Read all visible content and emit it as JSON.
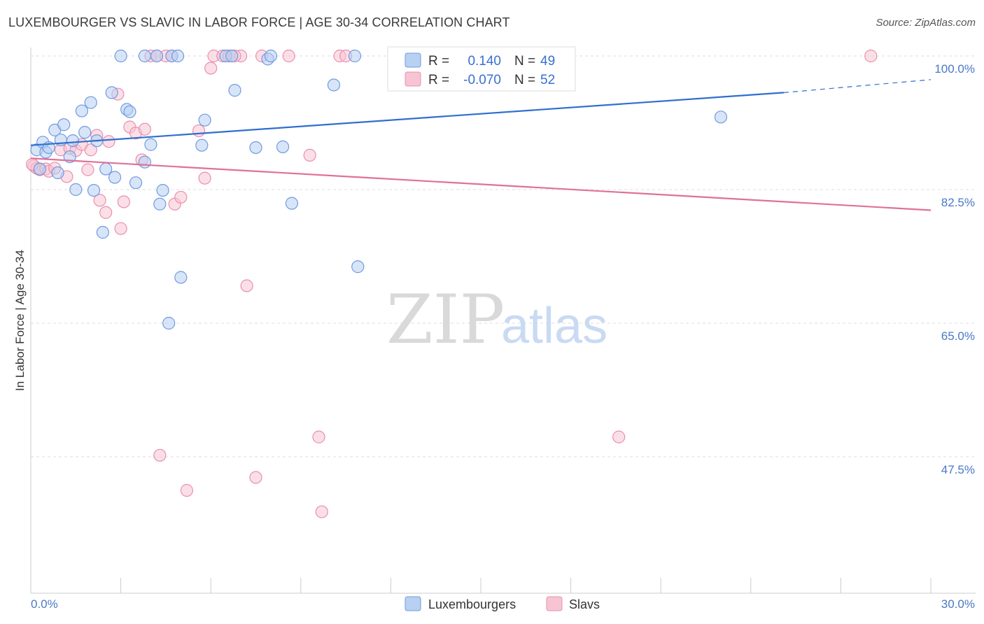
{
  "title": "LUXEMBOURGER VS SLAVIC IN LABOR FORCE | AGE 30-34 CORRELATION CHART",
  "source": "Source: ZipAtlas.com",
  "watermark": {
    "zip": "ZIP",
    "atlas": "atlas"
  },
  "legend": {
    "r_label": "R =",
    "n_label": "N =",
    "series": [
      {
        "r": "0.140",
        "n": "49"
      },
      {
        "r": "-0.070",
        "n": "52"
      }
    ]
  },
  "colors": {
    "lux_fill": "#b8d0f2",
    "lux_stroke": "#6f9be0",
    "lux_line": "#2f6fcf",
    "slav_fill": "#f7c4d3",
    "slav_stroke": "#e890ad",
    "slav_line": "#e0709a",
    "grid": "#dddddd",
    "axis_text": "#4a78c8"
  },
  "chart_data": {
    "type": "scatter",
    "title": "LUXEMBOURGER VS SLAVIC IN LABOR FORCE | AGE 30-34 CORRELATION CHART",
    "xlabel": "",
    "ylabel": "In Labor Force | Age 30-34",
    "xlim": [
      0,
      30
    ],
    "ylim": [
      32.5,
      102
    ],
    "x_tick_labels": [
      "0.0%",
      "30.0%"
    ],
    "y_ticks": [
      47.5,
      65.0,
      82.5,
      100.0
    ],
    "y_tick_labels": [
      "47.5%",
      "65.0%",
      "82.5%",
      "100.0%"
    ],
    "grid": true,
    "legend_position": "top-center",
    "series": [
      {
        "name": "Luxembourgers",
        "r": 0.14,
        "n": 49,
        "trend": {
          "x": [
            0,
            25.1
          ],
          "y": [
            88.3,
            95.2
          ],
          "dashed_to": [
            30,
            96.9
          ]
        },
        "points": [
          [
            0.2,
            87.7
          ],
          [
            0.3,
            85.2
          ],
          [
            0.4,
            88.7
          ],
          [
            0.5,
            87.4
          ],
          [
            0.6,
            88.0
          ],
          [
            0.8,
            90.3
          ],
          [
            0.9,
            84.7
          ],
          [
            1.0,
            89.0
          ],
          [
            1.1,
            91.0
          ],
          [
            1.3,
            86.8
          ],
          [
            1.4,
            88.9
          ],
          [
            1.5,
            82.5
          ],
          [
            1.7,
            92.8
          ],
          [
            1.8,
            90.0
          ],
          [
            2.0,
            93.9
          ],
          [
            2.1,
            82.4
          ],
          [
            2.2,
            88.9
          ],
          [
            2.4,
            76.9
          ],
          [
            2.5,
            85.2
          ],
          [
            2.7,
            95.2
          ],
          [
            2.8,
            84.1
          ],
          [
            3.0,
            100.0
          ],
          [
            3.2,
            93.0
          ],
          [
            3.3,
            92.7
          ],
          [
            3.5,
            83.4
          ],
          [
            3.8,
            86.1
          ],
          [
            3.8,
            100.0
          ],
          [
            4.0,
            88.4
          ],
          [
            4.2,
            100.0
          ],
          [
            4.3,
            80.6
          ],
          [
            4.4,
            82.4
          ],
          [
            4.6,
            65.0
          ],
          [
            4.7,
            100.0
          ],
          [
            4.9,
            100.0
          ],
          [
            5.0,
            71.0
          ],
          [
            5.7,
            88.3
          ],
          [
            5.8,
            91.6
          ],
          [
            6.5,
            100.0
          ],
          [
            6.7,
            100.0
          ],
          [
            6.8,
            95.5
          ],
          [
            7.5,
            88.0
          ],
          [
            7.9,
            99.6
          ],
          [
            8.0,
            100.0
          ],
          [
            8.4,
            88.1
          ],
          [
            8.7,
            80.7
          ],
          [
            10.1,
            96.2
          ],
          [
            10.8,
            100.0
          ],
          [
            10.9,
            72.4
          ],
          [
            23.0,
            92.0
          ]
        ]
      },
      {
        "name": "Slavs",
        "r": -0.07,
        "n": 52,
        "trend": {
          "x": [
            0,
            30
          ],
          "y": [
            86.6,
            79.8
          ]
        },
        "points": [
          [
            0.1,
            85.6
          ],
          [
            0.2,
            85.3
          ],
          [
            0.3,
            85.1
          ],
          [
            0.5,
            85.2
          ],
          [
            0.6,
            84.9
          ],
          [
            0.8,
            85.3
          ],
          [
            1.0,
            87.7
          ],
          [
            1.2,
            84.2
          ],
          [
            1.3,
            87.9
          ],
          [
            1.5,
            87.6
          ],
          [
            1.7,
            88.4
          ],
          [
            1.9,
            85.1
          ],
          [
            2.0,
            87.7
          ],
          [
            2.2,
            89.6
          ],
          [
            2.3,
            81.1
          ],
          [
            2.5,
            79.5
          ],
          [
            2.6,
            88.8
          ],
          [
            2.9,
            95.0
          ],
          [
            3.0,
            77.4
          ],
          [
            3.1,
            80.9
          ],
          [
            3.3,
            90.7
          ],
          [
            3.5,
            89.9
          ],
          [
            3.7,
            86.4
          ],
          [
            3.8,
            90.4
          ],
          [
            4.0,
            100.0
          ],
          [
            4.2,
            100.0
          ],
          [
            4.3,
            47.7
          ],
          [
            4.5,
            100.0
          ],
          [
            4.7,
            100.0
          ],
          [
            4.8,
            80.6
          ],
          [
            5.0,
            81.5
          ],
          [
            5.2,
            43.1
          ],
          [
            5.6,
            90.2
          ],
          [
            5.8,
            84.0
          ],
          [
            6.0,
            98.4
          ],
          [
            6.1,
            100.0
          ],
          [
            6.4,
            100.0
          ],
          [
            6.6,
            100.0
          ],
          [
            7.0,
            100.0
          ],
          [
            7.2,
            69.9
          ],
          [
            7.5,
            44.8
          ],
          [
            7.7,
            100.0
          ],
          [
            8.6,
            100.0
          ],
          [
            9.3,
            87.0
          ],
          [
            9.6,
            50.1
          ],
          [
            9.7,
            40.3
          ],
          [
            10.3,
            100.0
          ],
          [
            10.5,
            100.0
          ],
          [
            19.6,
            50.1
          ],
          [
            28.0,
            100.0
          ],
          [
            0.05,
            85.8
          ],
          [
            6.8,
            100.0
          ]
        ]
      }
    ]
  }
}
